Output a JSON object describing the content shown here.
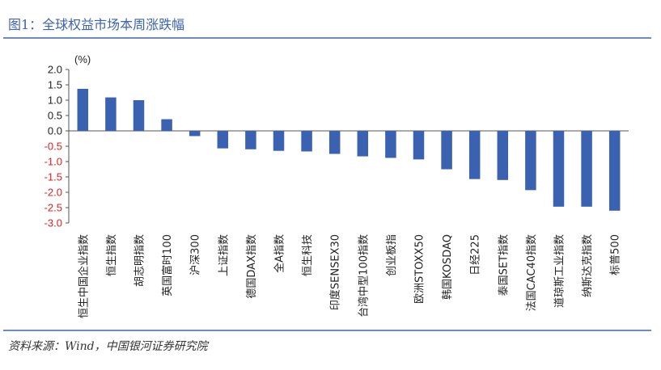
{
  "header": {
    "title": "图1：全球权益市场本周涨跌幅"
  },
  "footer": {
    "source": "资料来源：Wind，中国银河证券研究院"
  },
  "colors": {
    "bar": "#3b62b1",
    "negative_tick": "#e02020",
    "positive_tick": "#222222",
    "rule": "#6b8bc6",
    "title": "#3d63b0"
  },
  "chart_data": {
    "type": "bar",
    "title": "",
    "unit": "(%)",
    "xlabel": "",
    "ylabel": "",
    "ylim": [
      -3.0,
      2.0
    ],
    "yticks": [
      "2.0",
      "1.5",
      "1.0",
      "0.5",
      "0.0",
      "-0.5",
      "-1.0",
      "-1.5",
      "-2.0",
      "-2.5",
      "-3.0"
    ],
    "grid": false,
    "legend": "none",
    "categories": [
      "恒生中国企业指数",
      "恒生指数",
      "胡志明指数",
      "英国富时100",
      "沪深300",
      "上证指数",
      "德国DAX指数",
      "全A指数",
      "恒生科技",
      "印度SENSEX30",
      "台湾中型100指数",
      "创业板指",
      "欧洲STOXX50",
      "韩国KOSDAQ",
      "日经225",
      "泰国SET指数",
      "法国CAC40指数",
      "道琼斯工业指数",
      "纳斯达克指数",
      "标普500"
    ],
    "values": [
      1.37,
      1.09,
      1.0,
      0.38,
      -0.17,
      -0.57,
      -0.6,
      -0.65,
      -0.67,
      -0.75,
      -0.83,
      -0.88,
      -0.93,
      -1.25,
      -1.57,
      -1.6,
      -1.93,
      -2.47,
      -2.47,
      -2.6
    ]
  }
}
